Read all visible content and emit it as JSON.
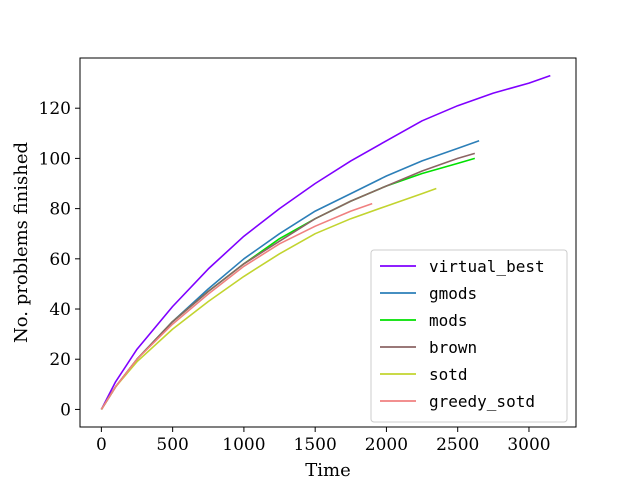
{
  "chart_data": {
    "type": "line",
    "title": "",
    "xlabel": "Time",
    "ylabel": "No. problems finished",
    "xlim": [
      -150,
      3330
    ],
    "ylim": [
      -7,
      140
    ],
    "xticks": [
      0,
      500,
      1000,
      1500,
      2000,
      2500,
      3000
    ],
    "yticks": [
      0,
      20,
      40,
      60,
      80,
      100,
      120
    ],
    "grid": false,
    "legend_position": "lower-right",
    "series": [
      {
        "name": "virtual_best",
        "color": "#7f00ff",
        "x": [
          0,
          100,
          250,
          500,
          750,
          1000,
          1250,
          1500,
          1750,
          2000,
          2250,
          2500,
          2750,
          3000,
          3150
        ],
        "y": [
          0,
          11,
          24,
          41,
          56,
          69,
          80,
          90,
          99,
          107,
          115,
          121,
          126,
          130,
          133
        ]
      },
      {
        "name": "gmods",
        "color": "#2c7fb8",
        "x": [
          0,
          100,
          250,
          500,
          750,
          1000,
          1250,
          1500,
          1750,
          2000,
          2250,
          2500,
          2650
        ],
        "y": [
          0,
          9,
          20,
          35,
          48,
          60,
          70,
          79,
          86,
          93,
          99,
          104,
          107
        ]
      },
      {
        "name": "mods",
        "color": "#00e000",
        "x": [
          0,
          100,
          250,
          500,
          750,
          1000,
          1250,
          1500,
          1750,
          2000,
          2250,
          2500,
          2620
        ],
        "y": [
          0,
          9,
          20,
          35,
          47,
          58,
          68,
          76,
          83,
          89,
          94,
          98,
          100
        ]
      },
      {
        "name": "brown",
        "color": "#8c6464",
        "x": [
          0,
          100,
          250,
          500,
          750,
          1000,
          1250,
          1500,
          1750,
          2000,
          2250,
          2500,
          2620
        ],
        "y": [
          0,
          9,
          20,
          35,
          47,
          58,
          67,
          76,
          83,
          89,
          95,
          100,
          102
        ]
      },
      {
        "name": "sotd",
        "color": "#c2d42f",
        "x": [
          0,
          100,
          250,
          500,
          750,
          1000,
          1250,
          1500,
          1750,
          2000,
          2250,
          2350
        ],
        "y": [
          0,
          9,
          19,
          32,
          43,
          53,
          62,
          70,
          76,
          81,
          86,
          88
        ]
      },
      {
        "name": "greedy_sotd",
        "color": "#f08080",
        "x": [
          0,
          100,
          250,
          500,
          750,
          1000,
          1250,
          1500,
          1750,
          1900
        ],
        "y": [
          0,
          9,
          20,
          34,
          46,
          57,
          66,
          73,
          79,
          82
        ]
      }
    ]
  }
}
